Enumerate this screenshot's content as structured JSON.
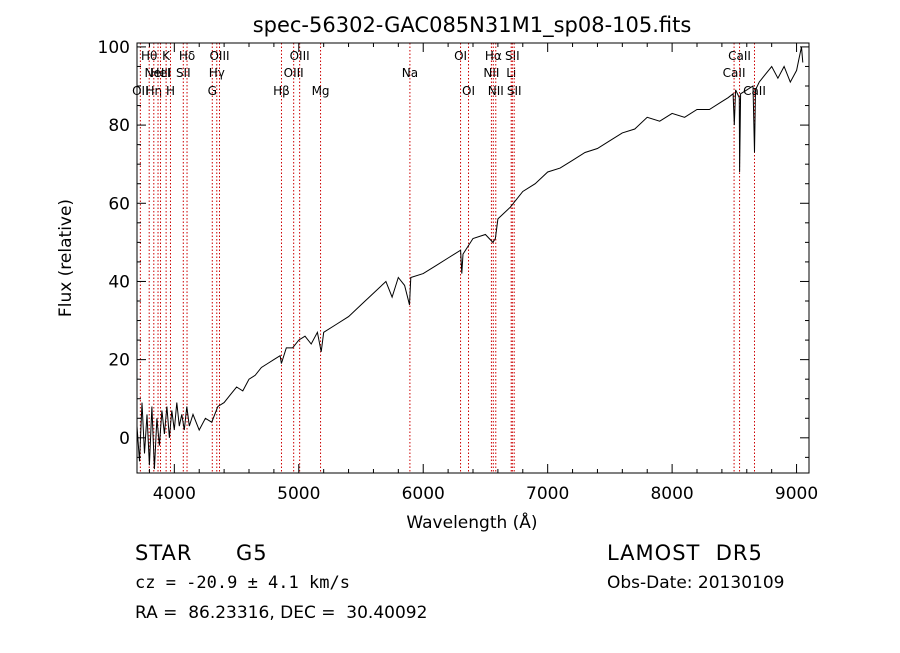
{
  "chart_data": {
    "type": "line",
    "title": "spec-56302-GAC085N31M1_sp08-105.fits",
    "xlabel": "Wavelength (Å)",
    "ylabel": "Flux (relative)",
    "xlim": [
      3700,
      9100
    ],
    "ylim": [
      -9,
      101
    ],
    "x_ticks": [
      4000,
      5000,
      6000,
      7000,
      8000,
      9000
    ],
    "y_ticks": [
      0,
      20,
      40,
      60,
      80,
      100
    ],
    "grid": false,
    "series": [
      {
        "color": "#000000",
        "points": [
          [
            3700,
            3
          ],
          [
            3720,
            -6
          ],
          [
            3740,
            9
          ],
          [
            3760,
            -4
          ],
          [
            3780,
            6
          ],
          [
            3800,
            -7
          ],
          [
            3820,
            8
          ],
          [
            3840,
            -8
          ],
          [
            3860,
            5
          ],
          [
            3880,
            -2
          ],
          [
            3900,
            7
          ],
          [
            3920,
            1
          ],
          [
            3940,
            8
          ],
          [
            3960,
            0
          ],
          [
            3980,
            7
          ],
          [
            4000,
            2
          ],
          [
            4020,
            9
          ],
          [
            4040,
            3
          ],
          [
            4060,
            6
          ],
          [
            4080,
            2
          ],
          [
            4100,
            8
          ],
          [
            4120,
            3
          ],
          [
            4150,
            6
          ],
          [
            4200,
            2
          ],
          [
            4250,
            5
          ],
          [
            4300,
            4
          ],
          [
            4350,
            8
          ],
          [
            4400,
            9
          ],
          [
            4450,
            11
          ],
          [
            4500,
            13
          ],
          [
            4550,
            12
          ],
          [
            4600,
            15
          ],
          [
            4650,
            16
          ],
          [
            4700,
            18
          ],
          [
            4750,
            19
          ],
          [
            4800,
            20
          ],
          [
            4850,
            21
          ],
          [
            4860,
            19
          ],
          [
            4900,
            23
          ],
          [
            4950,
            23
          ],
          [
            5000,
            25
          ],
          [
            5050,
            26
          ],
          [
            5100,
            24
          ],
          [
            5150,
            27
          ],
          [
            5180,
            22
          ],
          [
            5200,
            27
          ],
          [
            5300,
            29
          ],
          [
            5400,
            31
          ],
          [
            5500,
            34
          ],
          [
            5600,
            37
          ],
          [
            5700,
            40
          ],
          [
            5750,
            36
          ],
          [
            5800,
            41
          ],
          [
            5850,
            39
          ],
          [
            5890,
            34
          ],
          [
            5900,
            41
          ],
          [
            6000,
            42
          ],
          [
            6100,
            44
          ],
          [
            6200,
            46
          ],
          [
            6300,
            48
          ],
          [
            6310,
            42
          ],
          [
            6320,
            47
          ],
          [
            6400,
            51
          ],
          [
            6500,
            52
          ],
          [
            6560,
            50
          ],
          [
            6580,
            51
          ],
          [
            6600,
            56
          ],
          [
            6700,
            59
          ],
          [
            6800,
            63
          ],
          [
            6900,
            65
          ],
          [
            7000,
            68
          ],
          [
            7100,
            69
          ],
          [
            7200,
            71
          ],
          [
            7300,
            73
          ],
          [
            7400,
            74
          ],
          [
            7500,
            76
          ],
          [
            7600,
            78
          ],
          [
            7700,
            79
          ],
          [
            7800,
            82
          ],
          [
            7900,
            81
          ],
          [
            8000,
            83
          ],
          [
            8100,
            82
          ],
          [
            8200,
            84
          ],
          [
            8300,
            84
          ],
          [
            8400,
            86
          ],
          [
            8450,
            87
          ],
          [
            8490,
            88
          ],
          [
            8500,
            80
          ],
          [
            8510,
            89
          ],
          [
            8540,
            87
          ],
          [
            8542,
            68
          ],
          [
            8550,
            88
          ],
          [
            8600,
            89
          ],
          [
            8650,
            90
          ],
          [
            8662,
            73
          ],
          [
            8670,
            89
          ],
          [
            8700,
            91
          ],
          [
            8750,
            93
          ],
          [
            8800,
            95
          ],
          [
            8850,
            92
          ],
          [
            8900,
            95
          ],
          [
            8950,
            91
          ],
          [
            9000,
            94
          ],
          [
            9020,
            97
          ],
          [
            9040,
            100
          ],
          [
            9050,
            96
          ]
        ]
      }
    ],
    "lines": [
      {
        "x": 3727,
        "labels": [
          "OII"
        ],
        "row": 2
      },
      {
        "x": 3798,
        "labels": [
          "Hθ"
        ],
        "row": 0
      },
      {
        "x": 3835,
        "labels": [
          "Hη"
        ],
        "row": 2
      },
      {
        "x": 3869,
        "labels": [
          "NeIII"
        ],
        "row": 1
      },
      {
        "x": 3889,
        "labels": [
          "HeI"
        ],
        "row": 1
      },
      {
        "x": 3934,
        "labels": [
          "K"
        ],
        "row": 0
      },
      {
        "x": 3969,
        "labels": [
          "H"
        ],
        "row": 2
      },
      {
        "x": 4072,
        "labels": [
          "SII"
        ],
        "row": 1
      },
      {
        "x": 4102,
        "labels": [
          "Hδ"
        ],
        "row": 0
      },
      {
        "x": 4305,
        "labels": [
          "G"
        ],
        "row": 2
      },
      {
        "x": 4341,
        "labels": [
          "Hγ"
        ],
        "row": 1
      },
      {
        "x": 4363,
        "labels": [
          "OIII"
        ],
        "row": 0
      },
      {
        "x": 4861,
        "labels": [
          "Hβ"
        ],
        "row": 2
      },
      {
        "x": 4959,
        "labels": [
          "OIII"
        ],
        "row": 1
      },
      {
        "x": 5007,
        "labels": [
          "OIII"
        ],
        "row": 0
      },
      {
        "x": 5175,
        "labels": [
          "Mg"
        ],
        "row": 2
      },
      {
        "x": 5893,
        "labels": [
          "Na"
        ],
        "row": 1
      },
      {
        "x": 6300,
        "labels": [
          "OI"
        ],
        "row": 0
      },
      {
        "x": 6364,
        "labels": [
          "OI"
        ],
        "row": 2
      },
      {
        "x": 6548,
        "labels": [
          "NII"
        ],
        "row": 1
      },
      {
        "x": 6563,
        "labels": [
          "Hα"
        ],
        "row": 0
      },
      {
        "x": 6583,
        "labels": [
          "NII"
        ],
        "row": 2
      },
      {
        "x": 6707,
        "labels": [
          "Li"
        ],
        "row": 1
      },
      {
        "x": 6716,
        "labels": [
          "SII"
        ],
        "row": 0
      },
      {
        "x": 6731,
        "labels": [
          "SII"
        ],
        "row": 2
      },
      {
        "x": 8498,
        "labels": [
          "CaII"
        ],
        "row": 1
      },
      {
        "x": 8542,
        "labels": [
          "CaII"
        ],
        "row": 0
      },
      {
        "x": 8662,
        "labels": [
          "CaII"
        ],
        "row": 2
      }
    ]
  },
  "info": {
    "obj_class": "STAR",
    "subclass": "G5",
    "survey": "LAMOST  DR5",
    "cz": "cz = -20.9 ± 4.1 km/s",
    "obs_date": "Obs-Date: 20130109",
    "radec": "RA =  86.23316, DEC =  30.40092"
  }
}
